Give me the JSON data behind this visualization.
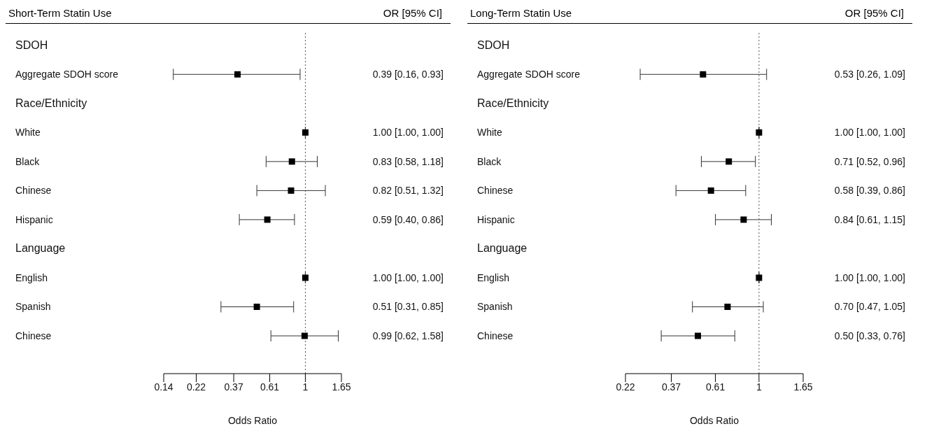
{
  "chart_data": [
    {
      "type": "scatter",
      "orientation": "horizontal",
      "title": "Short-Term Statin Use",
      "annotations": [
        "OR [95% CI]"
      ],
      "xlabel": "Odds Ratio",
      "log": "x",
      "marker": "square",
      "grid": false,
      "legend": false,
      "categories": [
        "SDOH",
        "Aggregate SDOH score",
        "Race/Ethnicity",
        "White",
        "Black",
        "Chinese",
        "Hispanic",
        "Language",
        "English",
        "Spanish",
        "Chinese"
      ],
      "values": [
        null,
        0.39,
        null,
        1.0,
        0.83,
        0.82,
        0.59,
        null,
        1.0,
        0.51,
        0.99
      ],
      "errors": [
        null,
        [
          0.16,
          0.93
        ],
        null,
        [
          1.0,
          1.0
        ],
        [
          0.58,
          1.18
        ],
        [
          0.51,
          1.32
        ],
        [
          0.4,
          0.86
        ],
        null,
        [
          1.0,
          1.0
        ],
        [
          0.31,
          0.85
        ],
        [
          0.62,
          1.58
        ]
      ],
      "value_labels": [
        null,
        "0.39 [0.16, 0.93]",
        null,
        "1.00 [1.00, 1.00]",
        "0.83 [0.58, 1.18]",
        "0.82 [0.51, 1.32]",
        "0.59 [0.40, 0.86]",
        null,
        "1.00 [1.00, 1.00]",
        "0.51 [0.31, 0.85]",
        "0.99 [0.62, 1.58]"
      ],
      "color": "#000000",
      "xlim": [
        0.14,
        1.65
      ],
      "xticks": [
        0.14,
        0.22,
        0.37,
        0.61,
        1,
        1.65
      ],
      "ref_lines": [
        {
          "axis": "x",
          "value": 1,
          "line_style": "dotted"
        }
      ]
    },
    {
      "type": "scatter",
      "orientation": "horizontal",
      "title": "Long-Term Statin Use",
      "annotations": [
        "OR [95% CI]"
      ],
      "xlabel": "Odds Ratio",
      "log": "x",
      "marker": "square",
      "grid": false,
      "legend": false,
      "categories": [
        "SDOH",
        "Aggregate SDOH score",
        "Race/Ethnicity",
        "White",
        "Black",
        "Chinese",
        "Hispanic",
        "Language",
        "English",
        "Spanish",
        "Chinese"
      ],
      "values": [
        null,
        0.53,
        null,
        1.0,
        0.71,
        0.58,
        0.84,
        null,
        1.0,
        0.7,
        0.5
      ],
      "errors": [
        null,
        [
          0.26,
          1.09
        ],
        null,
        [
          1.0,
          1.0
        ],
        [
          0.52,
          0.96
        ],
        [
          0.39,
          0.86
        ],
        [
          0.61,
          1.15
        ],
        null,
        [
          1.0,
          1.0
        ],
        [
          0.47,
          1.05
        ],
        [
          0.33,
          0.76
        ]
      ],
      "value_labels": [
        null,
        "0.53 [0.26, 1.09]",
        null,
        "1.00 [1.00, 1.00]",
        "0.71 [0.52, 0.96]",
        "0.58 [0.39, 0.86]",
        "0.84 [0.61, 1.15]",
        null,
        "1.00 [1.00, 1.00]",
        "0.70 [0.47, 1.05]",
        "0.50 [0.33, 0.76]"
      ],
      "color": "#000000",
      "xlim": [
        0.22,
        1.65
      ],
      "xticks": [
        0.22,
        0.37,
        0.61,
        1,
        1.65
      ],
      "ref_lines": [
        {
          "axis": "x",
          "value": 1,
          "line_style": "dotted"
        }
      ]
    }
  ]
}
